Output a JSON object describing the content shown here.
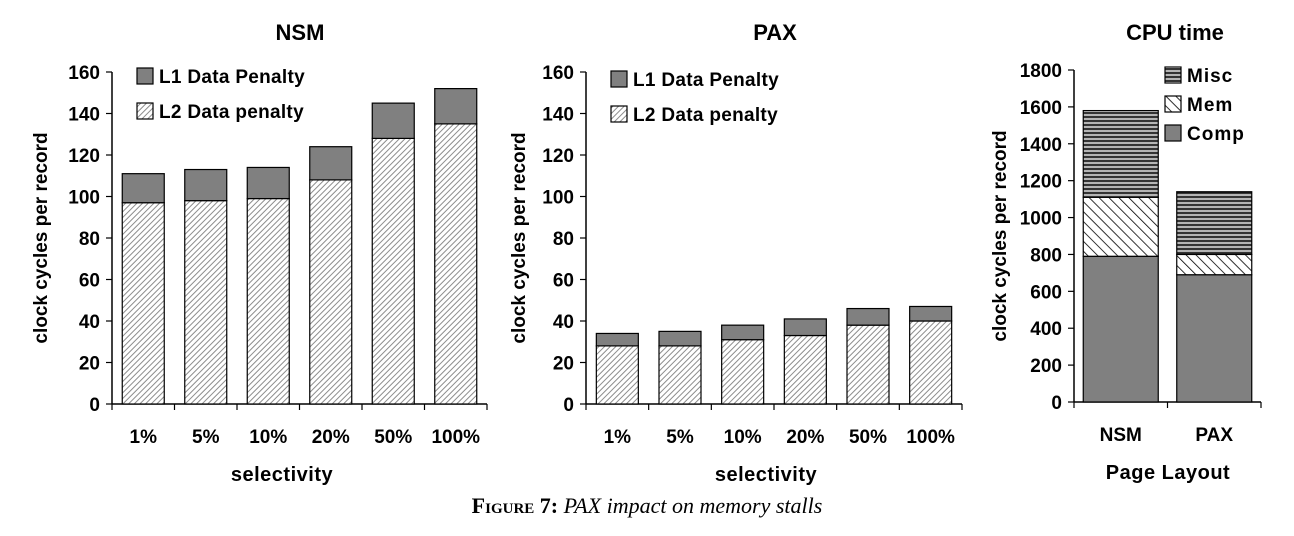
{
  "caption": {
    "label": "Figure 7:",
    "text": "PAX impact on memory stalls"
  },
  "chart_data": [
    {
      "type": "bar",
      "stacked": true,
      "title": "NSM",
      "xlabel": "selectivity",
      "ylabel": "clock cycles per record",
      "ylim": [
        0,
        160
      ],
      "ytick_step": 20,
      "categories": [
        "1%",
        "5%",
        "10%",
        "20%",
        "50%",
        "100%"
      ],
      "series": [
        {
          "name": "L2 Data penalty",
          "values": [
            97,
            98,
            99,
            108,
            128,
            135
          ],
          "pattern": "diag-fine"
        },
        {
          "name": "L1 Data Penalty",
          "values": [
            14,
            15,
            15,
            16,
            17,
            17
          ],
          "pattern": "solid-gray"
        }
      ],
      "legend_order": [
        "L1 Data Penalty",
        "L2 Data penalty"
      ],
      "legend_position": "top-left"
    },
    {
      "type": "bar",
      "stacked": true,
      "title": "PAX",
      "xlabel": "selectivity",
      "ylabel": "clock cycles per record",
      "ylim": [
        0,
        160
      ],
      "ytick_step": 20,
      "categories": [
        "1%",
        "5%",
        "10%",
        "20%",
        "50%",
        "100%"
      ],
      "series": [
        {
          "name": "L2 Data penalty",
          "values": [
            28,
            28,
            31,
            33,
            38,
            40
          ],
          "pattern": "diag-fine"
        },
        {
          "name": "L1 Data Penalty",
          "values": [
            6,
            7,
            7,
            8,
            8,
            7
          ],
          "pattern": "solid-gray"
        }
      ],
      "legend_order": [
        "L1 Data Penalty",
        "L2 Data penalty"
      ],
      "legend_position": "top-left"
    },
    {
      "type": "bar",
      "stacked": true,
      "title": "CPU time",
      "xlabel": "Page Layout",
      "ylabel": "clock cycles per record",
      "ylim": [
        0,
        1800
      ],
      "ytick_step": 200,
      "categories": [
        "NSM",
        "PAX"
      ],
      "series": [
        {
          "name": "Comp",
          "values": [
            790,
            690
          ],
          "pattern": "solid-gray"
        },
        {
          "name": "Mem",
          "values": [
            320,
            110
          ],
          "pattern": "diag-wide"
        },
        {
          "name": "Misc",
          "values": [
            470,
            340
          ],
          "pattern": "horiz-lines"
        }
      ],
      "legend_order": [
        "Misc",
        "Mem",
        "Comp"
      ],
      "legend_position": "top-right"
    }
  ]
}
